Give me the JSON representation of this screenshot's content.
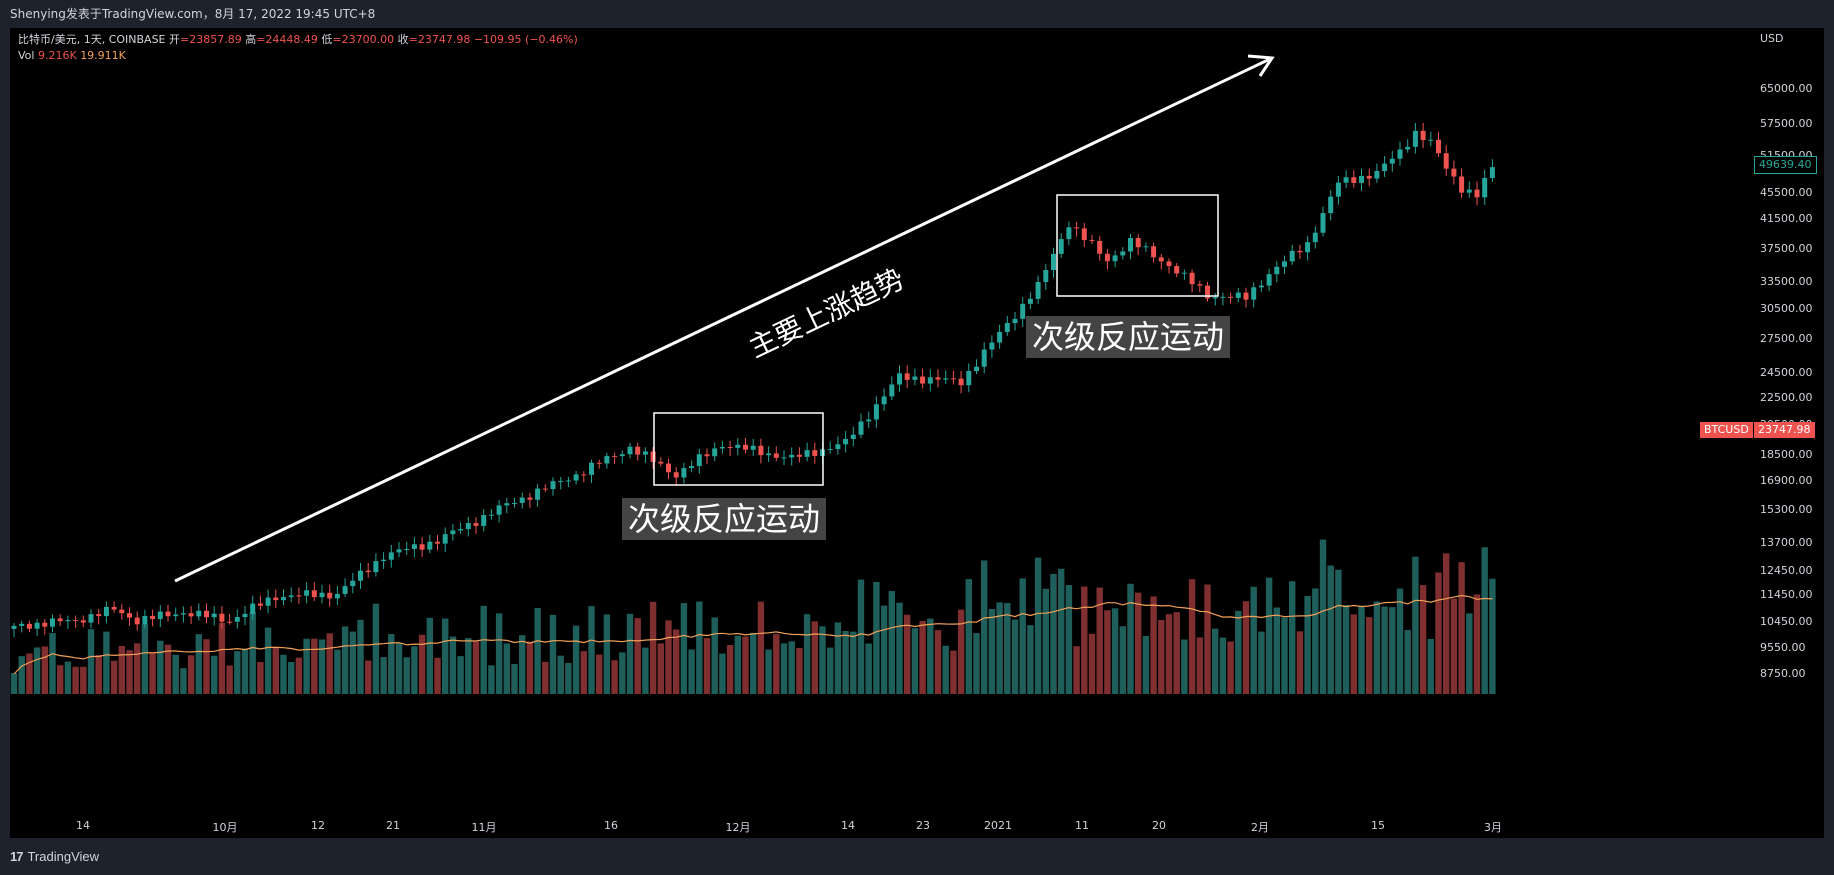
{
  "header": {
    "attribution": "Shenying发表于TradingView.com，8月 17, 2022 19:45 UTC+8"
  },
  "legend": {
    "symbol": "比特币/美元, 1天, COINBASE",
    "open_label": "开",
    "open": "=23857.89",
    "high_label": "高",
    "high": "=24448.49",
    "low_label": "低",
    "low": "=23700.00",
    "close_label": "收",
    "close": "=23747.98",
    "change": "−109.95 (−0.46%)",
    "vol_label": "Vol",
    "vol_value": "9.216K",
    "vol_ma": "19.911K"
  },
  "price_axis": {
    "unit": "USD",
    "labels": [
      "65000.00",
      "57500.00",
      "51500.00",
      "45500.00",
      "41500.00",
      "37500.00",
      "33500.00",
      "30500.00",
      "27500.00",
      "24500.00",
      "22500.00",
      "20500.00",
      "18500.00",
      "16900.00",
      "15300.00",
      "13700.00",
      "12450.00",
      "11450.00",
      "10450.00",
      "9550.00",
      "8750.00"
    ],
    "current_value": "49639.40",
    "btc_name": "BTCUSD",
    "btc_value": "23747.98"
  },
  "time_axis": {
    "labels": [
      "14",
      "10月",
      "12",
      "21",
      "11月",
      "16",
      "12月",
      "14",
      "23",
      "2021",
      "11",
      "20",
      "2月",
      "15",
      "3月"
    ]
  },
  "annotations": {
    "trend_label": "主要上涨趋势",
    "box1_label": "次级反应运动",
    "box2_label": "次级反应运动"
  },
  "footer": {
    "brand": "TradingView",
    "brand_mark": "17"
  },
  "colors": {
    "up": "#26a69a",
    "down": "#ef5350",
    "vol_up": "#1f5f5b",
    "vol_down": "#7f2f2f",
    "ma": "#f0a057",
    "background": "#000000"
  },
  "chart_data": {
    "type": "candlestick",
    "y_scale": "log",
    "start_close": 10300,
    "path": [
      [
        0,
        10300
      ],
      [
        8,
        10500
      ],
      [
        13,
        10900
      ],
      [
        16,
        10500
      ],
      [
        22,
        10800
      ],
      [
        28,
        10500
      ],
      [
        34,
        11400
      ],
      [
        42,
        11500
      ],
      [
        48,
        13100
      ],
      [
        55,
        13800
      ],
      [
        64,
        15600
      ],
      [
        73,
        17300
      ],
      [
        80,
        19000
      ],
      [
        86,
        17300
      ],
      [
        92,
        19200
      ],
      [
        101,
        18300
      ],
      [
        108,
        19300
      ],
      [
        115,
        24200
      ],
      [
        123,
        23800
      ],
      [
        129,
        29000
      ],
      [
        133,
        33000
      ],
      [
        137,
        41000
      ],
      [
        142,
        36000
      ],
      [
        145,
        38500
      ],
      [
        150,
        35500
      ],
      [
        155,
        32000
      ],
      [
        160,
        31700
      ],
      [
        163,
        34500
      ],
      [
        168,
        38200
      ],
      [
        172,
        47000
      ],
      [
        177,
        48700
      ],
      [
        180,
        52300
      ],
      [
        182,
        56000
      ],
      [
        184,
        54000
      ],
      [
        186,
        49500
      ],
      [
        188,
        46300
      ],
      [
        190,
        45000
      ],
      [
        192,
        49639
      ]
    ],
    "candle_count": 193
  }
}
